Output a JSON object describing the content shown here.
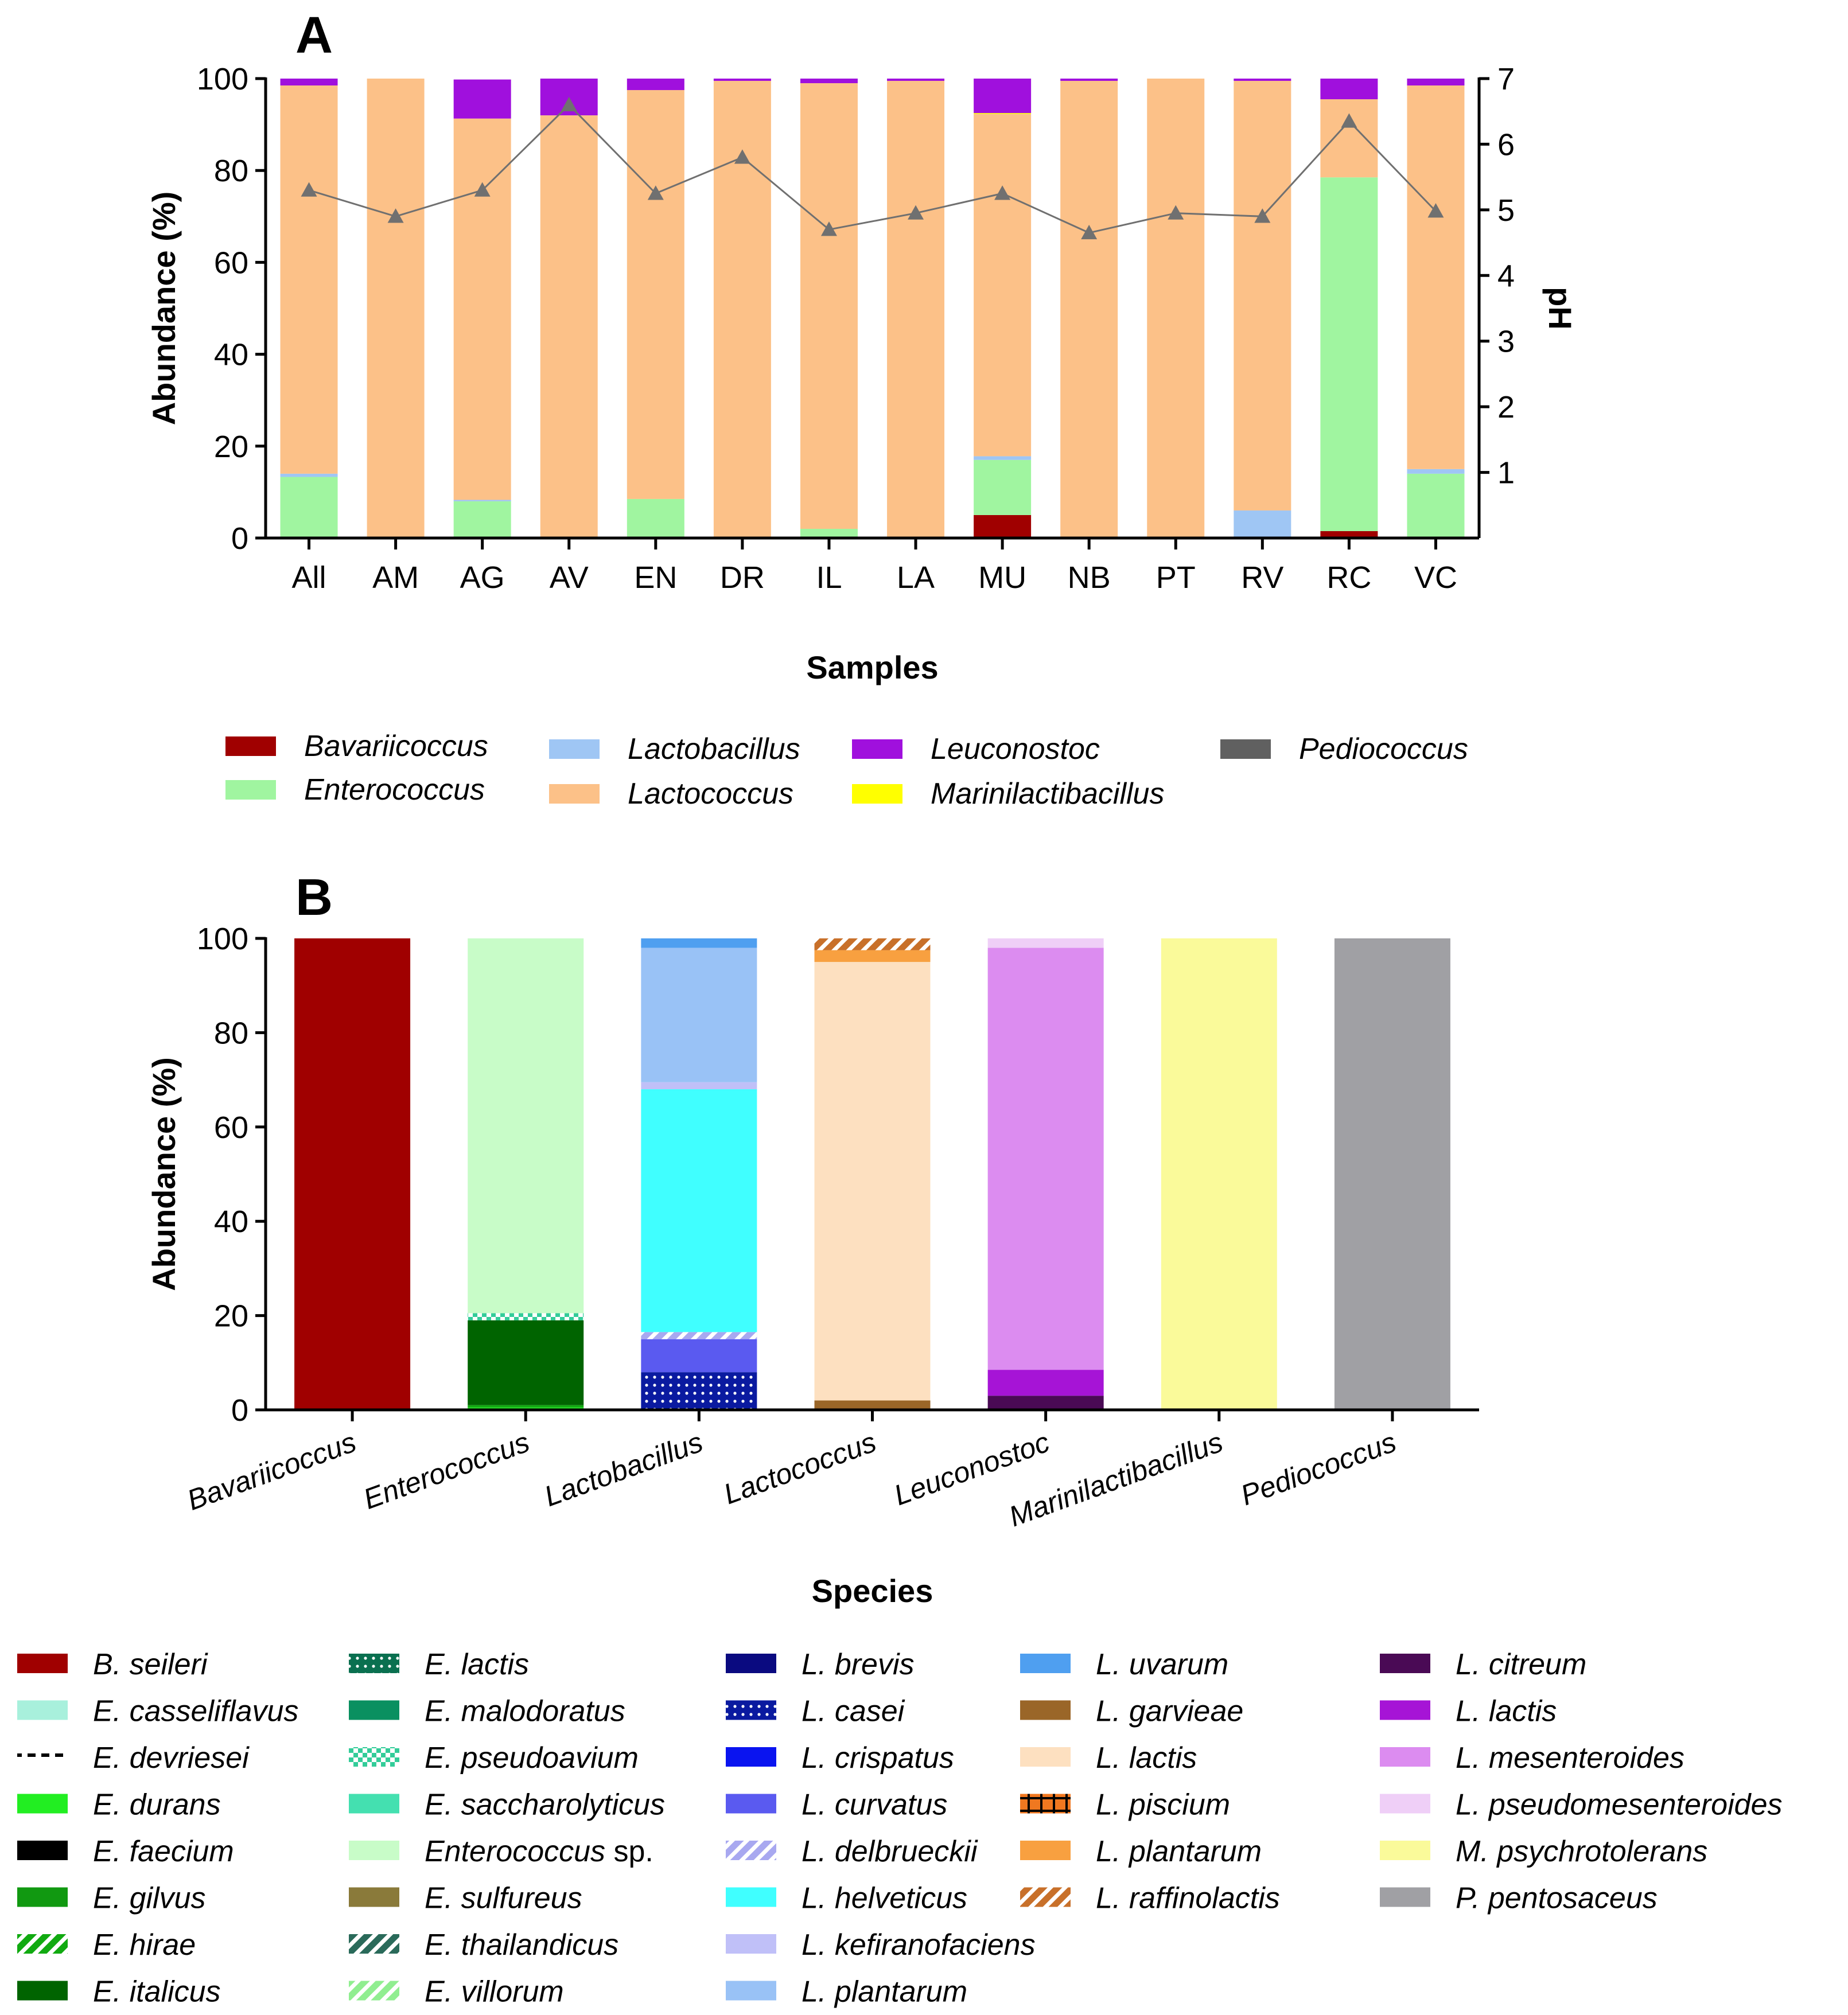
{
  "chart_data": [
    {
      "type": "bar",
      "stacked": true,
      "panel": "A",
      "title": "",
      "xlabel": "Samples",
      "ylabel": "Abundance (%)",
      "y2label": "pH",
      "ylim": [
        0,
        100
      ],
      "y2lim": [
        0,
        7
      ],
      "yticks": [
        "0",
        "20",
        "40",
        "60",
        "80",
        "100"
      ],
      "y2ticks": [
        "1",
        "2",
        "3",
        "4",
        "5",
        "6",
        "7"
      ],
      "categories": [
        "All",
        "AM",
        "AG",
        "AV",
        "EN",
        "DR",
        "IL",
        "LA",
        "MU",
        "NB",
        "PT",
        "RV",
        "RC",
        "VC"
      ],
      "series": [
        {
          "name": "Bavariicoccus",
          "color": "#a00000",
          "values": [
            0.3,
            0,
            0,
            0,
            0,
            0,
            0,
            0,
            5,
            0,
            0,
            0,
            1.5,
            0
          ]
        },
        {
          "name": "Enterococcus",
          "color": "#a0f5a0",
          "values": [
            13,
            0,
            8,
            0,
            8.5,
            0,
            2,
            0,
            12,
            0,
            0,
            0,
            77,
            14
          ]
        },
        {
          "name": "Lactobacillus",
          "color": "#9fc6f4",
          "values": [
            0.7,
            0,
            0.3,
            0,
            0,
            0,
            0,
            0,
            0.8,
            0,
            0,
            6,
            0,
            1
          ]
        },
        {
          "name": "Lactococcus",
          "color": "#fcc188",
          "values": [
            84.5,
            100,
            83,
            92,
            89,
            99.5,
            97,
            99.5,
            74.5,
            99.5,
            100,
            93.5,
            17,
            83.5
          ]
        },
        {
          "name": "Marinilactibacillus",
          "color": "#ffff00",
          "values": [
            0,
            0,
            0,
            0,
            0,
            0,
            0,
            0,
            0.2,
            0,
            0,
            0,
            0,
            0
          ]
        },
        {
          "name": "Leuconostoc",
          "color": "#a010dd",
          "values": [
            1.5,
            0,
            8.5,
            8,
            2.5,
            0.5,
            1,
            0.5,
            7.5,
            0.5,
            0,
            0.5,
            4.5,
            1.5
          ]
        },
        {
          "name": "Pediococcus",
          "color": "#606060",
          "values": [
            0,
            0,
            0,
            0,
            0,
            0,
            0,
            0,
            0,
            0,
            0,
            0,
            0,
            0
          ]
        }
      ],
      "ph": [
        5.3,
        4.9,
        5.3,
        6.6,
        5.25,
        5.8,
        4.7,
        4.95,
        5.25,
        4.65,
        4.95,
        4.9,
        6.35,
        4.98
      ],
      "legend": [
        "Bavariicoccus",
        "Enterococcus",
        "Lactobacillus",
        "Lactococcus",
        "Leuconostoc",
        "Marinilactibacillus",
        "Pediococcus"
      ]
    },
    {
      "type": "bar",
      "stacked": true,
      "panel": "B",
      "title": "",
      "xlabel": "Species",
      "ylabel": "Abundance (%)",
      "ylim": [
        0,
        100
      ],
      "yticks": [
        "0",
        "20",
        "40",
        "60",
        "80",
        "100"
      ],
      "categories": [
        "Bavariicoccus",
        "Enterococcus",
        "Lactobacillus",
        "Lactococcus",
        "Leuconostoc",
        "Marinilactibacillus",
        "Pediococcus"
      ],
      "stacks": [
        [
          {
            "name": "B. seileri",
            "value": 100,
            "color": "#a00000"
          }
        ],
        [
          {
            "name": "E. durans",
            "value": 0.5,
            "color": "#22ee22"
          },
          {
            "name": "E. faecium",
            "value": 0.5,
            "color": "#11aa11"
          },
          {
            "name": "E. italicus",
            "value": 18,
            "color": "#006400"
          },
          {
            "name": "E. pseudoavium",
            "value": 1.5,
            "color": "#33cc99"
          },
          {
            "name": "Enterococcus sp.",
            "value": 79.5,
            "color": "#c8fcc8"
          }
        ],
        [
          {
            "name": "L. casei",
            "value": 8,
            "color": "#0a1aa0"
          },
          {
            "name": "L. curvatus",
            "value": 7,
            "color": "#5a5af0"
          },
          {
            "name": "L. delbrueckii",
            "value": 1.5,
            "color": "#a8a8f0"
          },
          {
            "name": "L. helveticus",
            "value": 51.5,
            "color": "#40ffff"
          },
          {
            "name": "L. kefiranofaciens",
            "value": 1.5,
            "color": "#c0c0f8"
          },
          {
            "name": "L. plantarum",
            "value": 28.5,
            "color": "#99c2f6"
          },
          {
            "name": "L. uvarum",
            "value": 2,
            "color": "#4f9ff0"
          }
        ],
        [
          {
            "name": "L. garvieae",
            "value": 2,
            "color": "#9a6628"
          },
          {
            "name": "L. lactis",
            "value": 93,
            "color": "#fde0c0"
          },
          {
            "name": "L. plantarum",
            "value": 2.5,
            "color": "#f8a040"
          },
          {
            "name": "L. raffinolactis",
            "value": 2.5,
            "color": "#c8702a"
          }
        ],
        [
          {
            "name": "L. citreum",
            "value": 3,
            "color": "#4a0a55"
          },
          {
            "name": "L. lactis",
            "value": 5.5,
            "color": "#a614d6"
          },
          {
            "name": "L. mesenteroides",
            "value": 89.5,
            "color": "#dc8cf0"
          },
          {
            "name": "L. pseudomesenteroides",
            "value": 2,
            "color": "#efcff7"
          }
        ],
        [
          {
            "name": "M. psychrotolerans",
            "value": 100,
            "color": "#fafa9a"
          }
        ],
        [
          {
            "name": "P. pentosaceus",
            "value": 100,
            "color": "#a0a0a4"
          }
        ]
      ],
      "legend": [
        {
          "label": "B. seileri",
          "color": "#a00000",
          "pattern": "solid"
        },
        {
          "label": "E. casseliflavus",
          "color": "#a8f0dc",
          "pattern": "solid"
        },
        {
          "label": "E. devriesei",
          "color": "#000000",
          "pattern": "dash"
        },
        {
          "label": "E. durans",
          "color": "#22ee22",
          "pattern": "solid"
        },
        {
          "label": "E. faecium",
          "color": "#000000",
          "pattern": "cross"
        },
        {
          "label": "E. gilvus",
          "color": "#119911",
          "pattern": "solid"
        },
        {
          "label": "E. hirae",
          "color": "#11aa11",
          "pattern": "diag"
        },
        {
          "label": "E. italicus",
          "color": "#006400",
          "pattern": "solid"
        },
        {
          "label": "E. lactis",
          "color": "#0a7050",
          "pattern": "dots"
        },
        {
          "label": "E. malodoratus",
          "color": "#0a9060",
          "pattern": "solid"
        },
        {
          "label": "E. pseudoavium",
          "color": "#33cc99",
          "pattern": "check"
        },
        {
          "label": "E. saccharolyticus",
          "color": "#44e0b0",
          "pattern": "solid"
        },
        {
          "label": "Enterococcus sp.",
          "color": "#c8fcc8",
          "pattern": "solid"
        },
        {
          "label": "E. sulfureus",
          "color": "#8a7a3a",
          "pattern": "solid"
        },
        {
          "label": "E. thailandicus",
          "color": "#2a6a5a",
          "pattern": "diag"
        },
        {
          "label": "E. villorum",
          "color": "#90ee90",
          "pattern": "diag"
        },
        {
          "label": "L. brevis",
          "color": "#0a0a80",
          "pattern": "solid"
        },
        {
          "label": "L. casei",
          "color": "#0a1aa0",
          "pattern": "dots"
        },
        {
          "label": "L. crispatus",
          "color": "#0a14f0",
          "pattern": "solid"
        },
        {
          "label": "L. curvatus",
          "color": "#5a5af0",
          "pattern": "solid"
        },
        {
          "label": "L. delbrueckii",
          "color": "#a8a8f0",
          "pattern": "diag"
        },
        {
          "label": "L. helveticus",
          "color": "#40ffff",
          "pattern": "solid"
        },
        {
          "label": "L. kefiranofaciens",
          "color": "#c0c0f8",
          "pattern": "solid"
        },
        {
          "label": "L. plantarum",
          "color": "#99c2f6",
          "pattern": "solid"
        },
        {
          "label": "L. uvarum",
          "color": "#4f9ff0",
          "pattern": "solid"
        },
        {
          "label": "L. garvieae",
          "color": "#9a6628",
          "pattern": "solid"
        },
        {
          "label": "L. lactis",
          "color": "#fde0c0",
          "pattern": "solid"
        },
        {
          "label": "L. piscium",
          "color": "#f07820",
          "pattern": "cross"
        },
        {
          "label": "L. plantarum",
          "color": "#f8a040",
          "pattern": "solid"
        },
        {
          "label": "L. raffinolactis",
          "color": "#c8702a",
          "pattern": "diag"
        },
        {
          "label": "L. citreum",
          "color": "#4a0a55",
          "pattern": "solid"
        },
        {
          "label": "L. lactis",
          "color": "#a614d6",
          "pattern": "solid"
        },
        {
          "label": "L. mesenteroides",
          "color": "#dc8cf0",
          "pattern": "solid"
        },
        {
          "label": "L. pseudomesenteroides",
          "color": "#efcff7",
          "pattern": "solid"
        },
        {
          "label": "M. psychrotolerans",
          "color": "#fafa9a",
          "pattern": "solid"
        },
        {
          "label": "P. pentosaceus",
          "color": "#a0a0a4",
          "pattern": "solid"
        }
      ]
    }
  ]
}
